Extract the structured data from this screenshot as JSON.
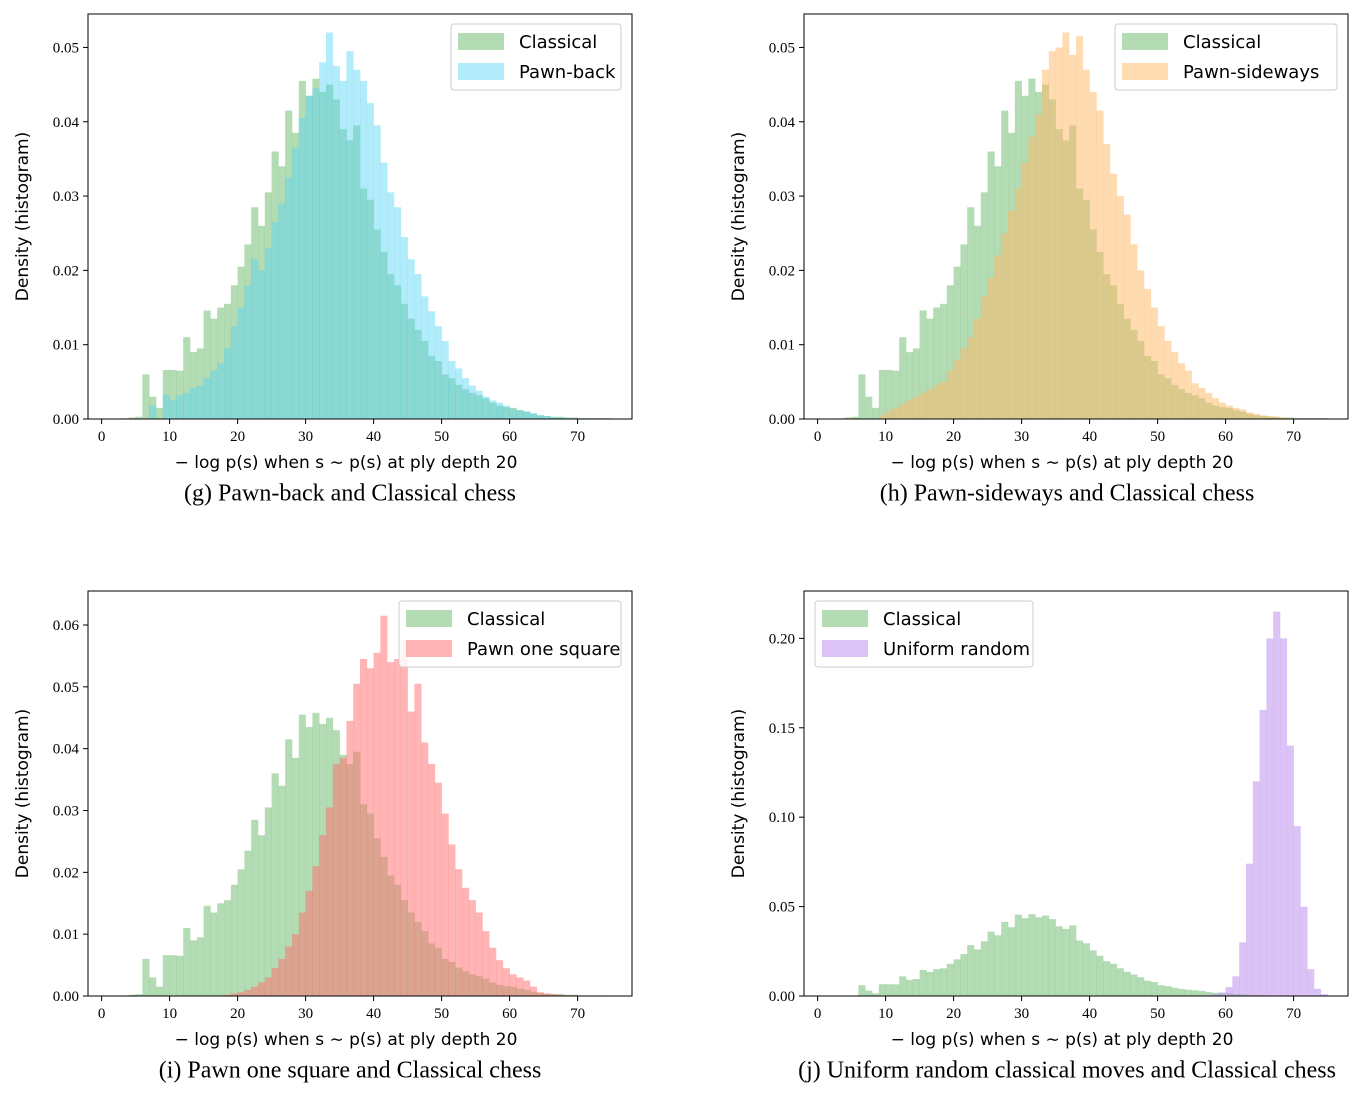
{
  "chart_data": [
    {
      "id": "g",
      "type": "histogram",
      "caption": "(g) Pawn-back and Classical chess",
      "xlabel": "− log p(s) when s ∼ p(s) at ply depth 20",
      "ylabel": "Density (histogram)",
      "xlim": [
        -2,
        78
      ],
      "ylim": [
        0,
        0.0545
      ],
      "xticks": [
        0,
        10,
        20,
        30,
        40,
        50,
        60,
        70
      ],
      "yticks": [
        0.0,
        0.01,
        0.02,
        0.03,
        0.04,
        0.05
      ],
      "ytick_labels": [
        "0.00",
        "0.01",
        "0.02",
        "0.03",
        "0.04",
        "0.05"
      ],
      "legend_position": "top-right",
      "bin_start": 3,
      "bin_width": 1,
      "series": [
        {
          "name": "Classical",
          "color": "#77c077",
          "alpha": 0.55,
          "values": [
            0.0001,
            0.0002,
            0.0003,
            0.006,
            0.003,
            0.0015,
            0.0066,
            0.0066,
            0.0065,
            0.011,
            0.009,
            0.0095,
            0.0146,
            0.0135,
            0.015,
            0.0155,
            0.018,
            0.0205,
            0.0235,
            0.0285,
            0.026,
            0.0305,
            0.036,
            0.034,
            0.0415,
            0.0385,
            0.0455,
            0.0435,
            0.0458,
            0.044,
            0.045,
            0.043,
            0.039,
            0.0375,
            0.0395,
            0.031,
            0.0295,
            0.0255,
            0.0225,
            0.0195,
            0.018,
            0.0155,
            0.0135,
            0.012,
            0.0105,
            0.0085,
            0.0078,
            0.006,
            0.0055,
            0.0046,
            0.004,
            0.0035,
            0.0032,
            0.0028,
            0.0022,
            0.0018,
            0.0016,
            0.0015,
            0.0012,
            0.001,
            0.0007,
            0.0005,
            0.0004,
            0.0003,
            0.0003,
            0.0002,
            0.0002,
            0.0001,
            0.0001,
            0.0001,
            0.0001,
            0.0001
          ]
        },
        {
          "name": "Pawn-back",
          "color": "#55d2f5",
          "alpha": 0.45,
          "values": [
            0,
            0,
            0,
            0,
            0.0018,
            0,
            0.0033,
            0.0025,
            0.0032,
            0.0035,
            0.0042,
            0.0045,
            0.0055,
            0.0065,
            0.0075,
            0.0095,
            0.0125,
            0.015,
            0.018,
            0.0215,
            0.02,
            0.023,
            0.0265,
            0.029,
            0.0325,
            0.0365,
            0.0405,
            0.0435,
            0.0445,
            0.048,
            0.052,
            0.0475,
            0.0455,
            0.0495,
            0.047,
            0.0455,
            0.0425,
            0.0395,
            0.0345,
            0.0305,
            0.0285,
            0.0245,
            0.0215,
            0.0195,
            0.0165,
            0.0145,
            0.0125,
            0.0105,
            0.0078,
            0.0068,
            0.0055,
            0.0045,
            0.0038,
            0.003,
            0.0025,
            0.0022,
            0.0018,
            0.0013,
            0.0012,
            0.001,
            0.0008,
            0.0005,
            0.0004,
            0.0002,
            0.0002,
            0.0001,
            0.0001,
            0.0001,
            0,
            0,
            0,
            0
          ]
        }
      ]
    },
    {
      "id": "h",
      "type": "histogram",
      "caption": "(h) Pawn-sideways and Classical chess",
      "xlabel": "− log p(s) when s ∼ p(s) at ply depth 20",
      "ylabel": "Density (histogram)",
      "xlim": [
        -2,
        78
      ],
      "ylim": [
        0,
        0.0545
      ],
      "xticks": [
        0,
        10,
        20,
        30,
        40,
        50,
        60,
        70
      ],
      "yticks": [
        0.0,
        0.01,
        0.02,
        0.03,
        0.04,
        0.05
      ],
      "ytick_labels": [
        "0.00",
        "0.01",
        "0.02",
        "0.03",
        "0.04",
        "0.05"
      ],
      "legend_position": "top-right",
      "bin_start": 3,
      "bin_width": 1,
      "series": [
        {
          "name": "Classical",
          "color": "#77c077",
          "alpha": 0.55,
          "values": [
            0.0001,
            0.0002,
            0.0003,
            0.006,
            0.003,
            0.0015,
            0.0066,
            0.0066,
            0.0065,
            0.011,
            0.009,
            0.0095,
            0.0146,
            0.0135,
            0.015,
            0.0155,
            0.018,
            0.0205,
            0.0235,
            0.0285,
            0.026,
            0.0305,
            0.036,
            0.034,
            0.0415,
            0.0385,
            0.0455,
            0.0435,
            0.0458,
            0.044,
            0.045,
            0.043,
            0.039,
            0.0375,
            0.0395,
            0.031,
            0.0295,
            0.0255,
            0.0225,
            0.0195,
            0.018,
            0.0155,
            0.0135,
            0.012,
            0.0105,
            0.0085,
            0.0078,
            0.006,
            0.0055,
            0.0046,
            0.004,
            0.0035,
            0.0032,
            0.0028,
            0.0022,
            0.0018,
            0.0016,
            0.0015,
            0.0012,
            0.001,
            0.0007,
            0.0005,
            0.0004,
            0.0003,
            0.0003,
            0.0002,
            0.0002,
            0.0001,
            0.0001,
            0.0001,
            0.0001,
            0.0001
          ]
        },
        {
          "name": "Pawn-sideways",
          "color": "#ffb866",
          "alpha": 0.5,
          "values": [
            0,
            0,
            0,
            0,
            0,
            0,
            0.0005,
            0.001,
            0.0015,
            0.002,
            0.0025,
            0.003,
            0.0035,
            0.004,
            0.0045,
            0.005,
            0.0065,
            0.008,
            0.0095,
            0.011,
            0.0135,
            0.0165,
            0.019,
            0.022,
            0.025,
            0.028,
            0.031,
            0.0345,
            0.038,
            0.041,
            0.047,
            0.0495,
            0.05,
            0.052,
            0.049,
            0.0515,
            0.047,
            0.044,
            0.0415,
            0.037,
            0.033,
            0.03,
            0.0275,
            0.0235,
            0.02,
            0.0175,
            0.015,
            0.0125,
            0.0105,
            0.009,
            0.0075,
            0.0065,
            0.0048,
            0.0042,
            0.0035,
            0.0028,
            0.0022,
            0.0018,
            0.0015,
            0.0013,
            0.0009,
            0.0007,
            0.0005,
            0.0004,
            0.0003,
            0.0002,
            0.0001,
            0.0001,
            0.0001,
            0,
            0,
            0
          ]
        }
      ]
    },
    {
      "id": "i",
      "type": "histogram",
      "caption": "(i) Pawn one square and Classical chess",
      "xlabel": "− log p(s) when s ∼ p(s) at ply depth 20",
      "ylabel": "Density (histogram)",
      "xlim": [
        -2,
        78
      ],
      "ylim": [
        0,
        0.0655
      ],
      "xticks": [
        0,
        10,
        20,
        30,
        40,
        50,
        60,
        70
      ],
      "yticks": [
        0.0,
        0.01,
        0.02,
        0.03,
        0.04,
        0.05,
        0.06
      ],
      "ytick_labels": [
        "0.00",
        "0.01",
        "0.02",
        "0.03",
        "0.04",
        "0.05",
        "0.06"
      ],
      "legend_position": "top-right",
      "bin_start": 3,
      "bin_width": 1,
      "series": [
        {
          "name": "Classical",
          "color": "#77c077",
          "alpha": 0.55,
          "values": [
            0.0001,
            0.0002,
            0.0003,
            0.006,
            0.003,
            0.0015,
            0.0066,
            0.0066,
            0.0065,
            0.011,
            0.009,
            0.0095,
            0.0146,
            0.0135,
            0.015,
            0.0155,
            0.018,
            0.0205,
            0.0235,
            0.0285,
            0.026,
            0.0305,
            0.036,
            0.034,
            0.0415,
            0.0385,
            0.0455,
            0.0435,
            0.0458,
            0.044,
            0.045,
            0.043,
            0.039,
            0.0375,
            0.0395,
            0.031,
            0.0295,
            0.0255,
            0.0225,
            0.0195,
            0.018,
            0.0155,
            0.0135,
            0.012,
            0.0105,
            0.0085,
            0.0078,
            0.006,
            0.0055,
            0.0046,
            0.004,
            0.0035,
            0.0032,
            0.0028,
            0.0022,
            0.0018,
            0.0016,
            0.0015,
            0.0012,
            0.001,
            0.0007,
            0.0005,
            0.0004,
            0.0003,
            0.0003,
            0.0002,
            0.0002,
            0.0001,
            0.0001,
            0.0001,
            0.0001,
            0.0001
          ]
        },
        {
          "name": "Pawn one square",
          "color": "#ff6b6b",
          "alpha": 0.5,
          "values": [
            0,
            0,
            0,
            0,
            0,
            0,
            0,
            0,
            0,
            0,
            0,
            0,
            0,
            0,
            0,
            0.0002,
            0.0004,
            0.0006,
            0.001,
            0.0015,
            0.0022,
            0.003,
            0.0045,
            0.006,
            0.008,
            0.01,
            0.0135,
            0.017,
            0.021,
            0.026,
            0.0305,
            0.0375,
            0.0385,
            0.0445,
            0.0505,
            0.0545,
            0.053,
            0.0555,
            0.0615,
            0.054,
            0.0545,
            0.0575,
            0.046,
            0.0505,
            0.041,
            0.0375,
            0.0345,
            0.0295,
            0.0245,
            0.0205,
            0.0175,
            0.0155,
            0.0135,
            0.0105,
            0.0078,
            0.0058,
            0.0045,
            0.0035,
            0.003,
            0.0025,
            0.0015,
            0.0006,
            0.0004,
            0.0003,
            0.0002,
            0.0001,
            0,
            0,
            0,
            0,
            0,
            0
          ]
        }
      ]
    },
    {
      "id": "j",
      "type": "histogram",
      "caption": "(j) Uniform random classical moves and Classical chess",
      "xlabel": "− log p(s) when s ∼ p(s) at ply depth 20",
      "ylabel": "Density (histogram)",
      "xlim": [
        -2,
        78
      ],
      "ylim": [
        0,
        0.2265
      ],
      "xticks": [
        0,
        10,
        20,
        30,
        40,
        50,
        60,
        70
      ],
      "yticks": [
        0.0,
        0.05,
        0.1,
        0.15,
        0.2
      ],
      "ytick_labels": [
        "0.00",
        "0.05",
        "0.10",
        "0.15",
        "0.20"
      ],
      "legend_position": "top-left",
      "bin_start": 3,
      "bin_width": 1,
      "series": [
        {
          "name": "Classical",
          "color": "#77c077",
          "alpha": 0.55,
          "values": [
            0.0001,
            0.0002,
            0.0003,
            0.006,
            0.003,
            0.0015,
            0.0066,
            0.0066,
            0.0065,
            0.011,
            0.009,
            0.0095,
            0.0146,
            0.0135,
            0.015,
            0.0155,
            0.018,
            0.0205,
            0.0235,
            0.0285,
            0.026,
            0.0305,
            0.036,
            0.034,
            0.0415,
            0.0385,
            0.0455,
            0.0435,
            0.0458,
            0.044,
            0.045,
            0.043,
            0.039,
            0.0375,
            0.0395,
            0.031,
            0.0295,
            0.0255,
            0.0225,
            0.0195,
            0.018,
            0.0155,
            0.0135,
            0.012,
            0.0105,
            0.0085,
            0.0078,
            0.006,
            0.0055,
            0.0046,
            0.004,
            0.0035,
            0.0032,
            0.0028,
            0.0022,
            0.0018,
            0.0016,
            0.0015,
            0.0012,
            0.001,
            0.0007,
            0.0005,
            0.0004,
            0.0003,
            0.0003,
            0.0002,
            0.0002,
            0.0001,
            0.0001,
            0.0001,
            0.0001,
            0.0001
          ]
        },
        {
          "name": "Uniform random",
          "color": "#c39bef",
          "alpha": 0.6,
          "values": [
            0,
            0,
            0,
            0,
            0,
            0,
            0,
            0,
            0,
            0,
            0,
            0,
            0,
            0,
            0,
            0,
            0,
            0,
            0,
            0,
            0,
            0,
            0,
            0,
            0,
            0,
            0,
            0,
            0,
            0,
            0,
            0,
            0,
            0,
            0,
            0,
            0,
            0,
            0,
            0,
            0,
            0,
            0,
            0,
            0,
            0,
            0,
            0,
            0,
            0,
            0,
            0,
            0,
            0,
            0.0005,
            0.001,
            0.002,
            0.005,
            0.011,
            0.03,
            0.074,
            0.12,
            0.16,
            0.2,
            0.215,
            0.2,
            0.14,
            0.095,
            0.05,
            0.015,
            0.004,
            0.001
          ]
        }
      ]
    }
  ]
}
